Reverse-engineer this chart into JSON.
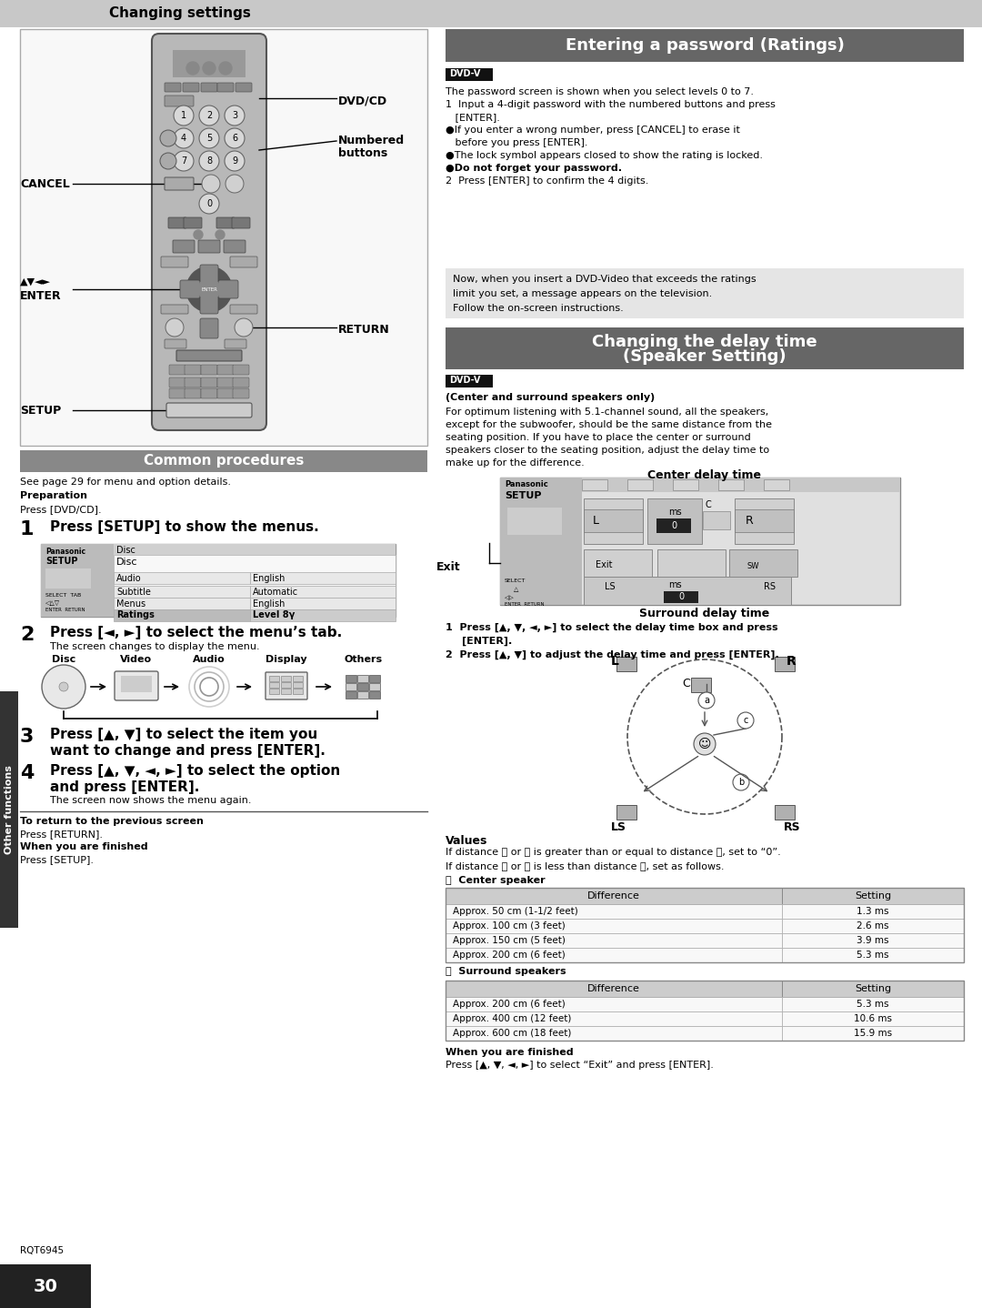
{
  "page_bg": "#ffffff",
  "header_bg": "#cccccc",
  "header_text": "Changing settings",
  "section1_header_bg": "#666666",
  "section1_header_text": "Entering a password (Ratings)",
  "section2_header_bg": "#666666",
  "section2_header_text_line1": "Changing the delay time",
  "section2_header_text_line2": "(Speaker Setting)",
  "common_proc_bg": "#888888",
  "common_proc_text": "Common procedures",
  "dvdv_bg": "#111111",
  "dvdv_text": "DVD-V",
  "sidebar_text": "Other functions",
  "page_number": "30",
  "model_code": "RQT6945",
  "password_lines": [
    "The password screen is shown when you select levels 0 to 7.",
    "1  Input a 4-digit password with the numbered buttons and press",
    "   [ENTER].",
    "●If you enter a wrong number, press [CANCEL] to erase it",
    "   before you press [ENTER].",
    "●The lock symbol appears closed to show the rating is locked.",
    "●Do not forget your password.",
    "2  Press [ENTER] to confirm the 4 digits."
  ],
  "info_lines": [
    "Now, when you insert a DVD-Video that exceeds the ratings",
    "limit you set, a message appears on the television.",
    "Follow the on-screen instructions."
  ],
  "speaker_text_lines": [
    "For optimum listening with 5.1-channel sound, all the speakers,",
    "except for the subwoofer, should be the same distance from the",
    "seating position. If you have to place the center or surround",
    "speakers closer to the seating position, adjust the delay time to",
    "make up for the difference."
  ],
  "center_rows": [
    [
      "Approx. 50 cm (1-1/2 feet)",
      "1.3 ms"
    ],
    [
      "Approx. 100 cm (3 feet)",
      "2.6 ms"
    ],
    [
      "Approx. 150 cm (5 feet)",
      "3.9 ms"
    ],
    [
      "Approx. 200 cm (6 feet)",
      "5.3 ms"
    ]
  ],
  "surround_rows": [
    [
      "Approx. 200 cm (6 feet)",
      "5.3 ms"
    ],
    [
      "Approx. 400 cm (12 feet)",
      "10.6 ms"
    ],
    [
      "Approx. 600 cm (18 feet)",
      "15.9 ms"
    ]
  ]
}
